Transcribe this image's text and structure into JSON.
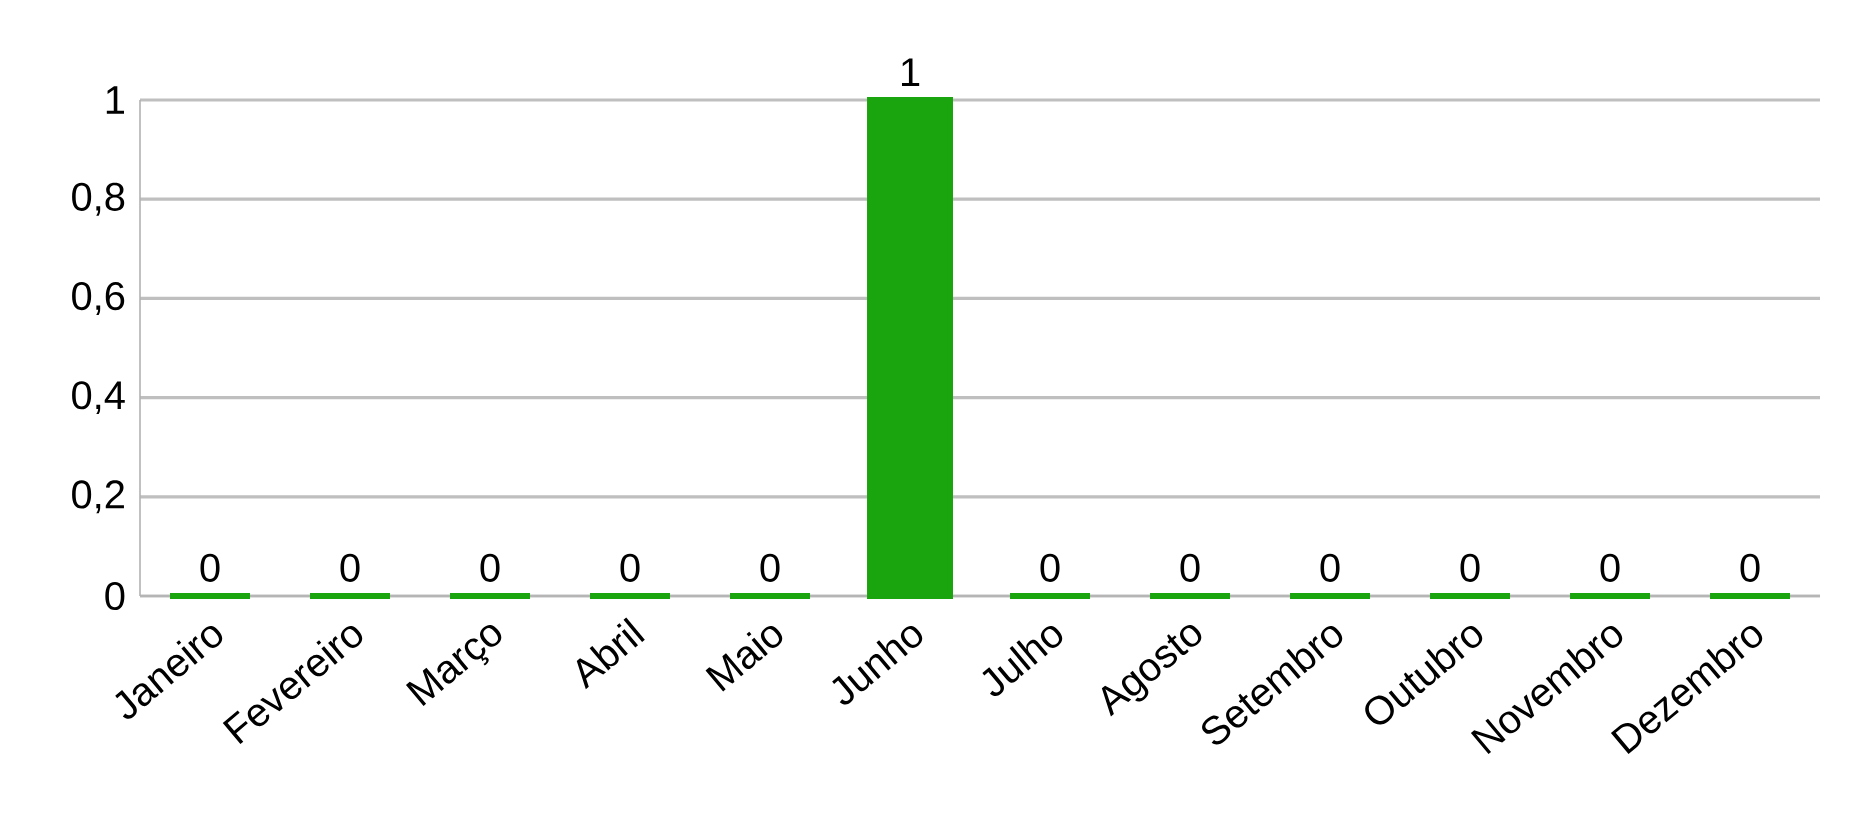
{
  "chart_data": {
    "type": "bar",
    "categories": [
      "Janeiro",
      "Fevereiro",
      "Março",
      "Abril",
      "Maio",
      "Junho",
      "Julho",
      "Agosto",
      "Setembro",
      "Outubro",
      "Novembro",
      "Dezembro"
    ],
    "values": [
      0,
      0,
      0,
      0,
      0,
      1,
      0,
      0,
      0,
      0,
      0,
      0
    ],
    "color": "#1aa50f",
    "ylim": [
      0,
      1
    ],
    "yticks": [
      0,
      {
        "value": 0.2,
        "label": "0,2"
      },
      {
        "value": 0.4,
        "label": "0,4"
      },
      {
        "value": 0.6,
        "label": "0,6"
      },
      {
        "value": 0.8,
        "label": "0,8"
      },
      1
    ],
    "grid": "y",
    "data_labels": true
  }
}
